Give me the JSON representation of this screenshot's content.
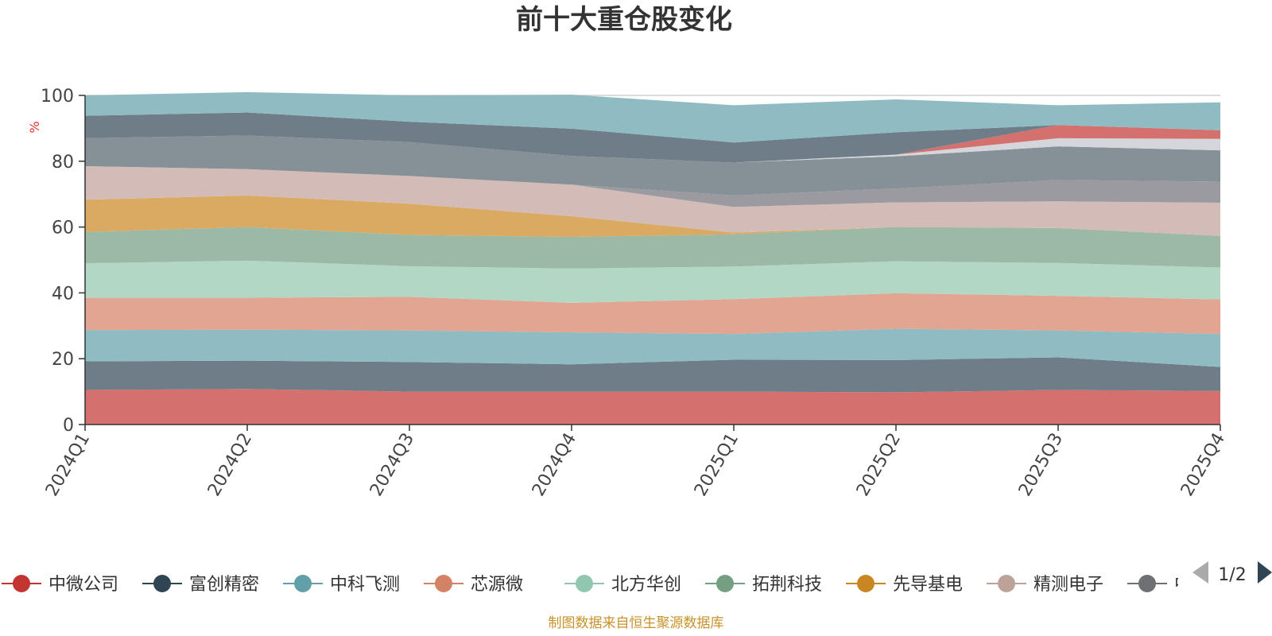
{
  "chart_data": {
    "type": "area",
    "stacked": true,
    "title": "前十大重仓股变化",
    "unit_label": "%",
    "x": [
      "2024Q1",
      "2024Q2",
      "2024Q3",
      "2024Q4",
      "2025Q1",
      "2025Q2",
      "2025Q3",
      "2025Q4"
    ],
    "ylim": [
      0,
      100
    ],
    "yticks": [
      0,
      20,
      40,
      60,
      80,
      100
    ],
    "grid": true,
    "series": [
      {
        "name": "中微公司",
        "color": "#d4716f",
        "values": [
          10.5,
          10.8,
          10.0,
          10.0,
          10.0,
          9.8,
          10.5,
          10.2
        ]
      },
      {
        "name": "富创精密",
        "color": "#6f7d88",
        "values": [
          8.7,
          8.6,
          9.0,
          8.3,
          9.7,
          9.8,
          9.9,
          7.3
        ]
      },
      {
        "name": "中科飞测",
        "color": "#8fbcc3",
        "values": [
          9.5,
          9.4,
          9.6,
          9.7,
          7.8,
          9.5,
          8.2,
          10.0
        ]
      },
      {
        "name": "芯源微",
        "color": "#e2a591",
        "values": [
          9.8,
          9.7,
          10.2,
          9.0,
          10.6,
          10.8,
          10.5,
          10.5
        ]
      },
      {
        "name": "北方华创",
        "color": "#b2d8c5",
        "values": [
          10.5,
          11.3,
          9.3,
          10.4,
          9.9,
          9.7,
          10.0,
          9.7
        ]
      },
      {
        "name": "拓荆科技",
        "color": "#9cb9a5",
        "values": [
          9.5,
          10.2,
          9.5,
          9.6,
          9.8,
          10.4,
          10.6,
          9.6
        ]
      },
      {
        "name": "先导基电",
        "color": "#daaa62",
        "values": [
          9.8,
          9.6,
          9.5,
          6.3,
          0.5,
          0,
          0,
          0
        ]
      },
      {
        "name": "精测电子",
        "color": "#d3bcb7",
        "values": [
          10.2,
          8.0,
          8.4,
          9.6,
          7.8,
          7.5,
          8.1,
          10.1
        ]
      },
      {
        "name": "中"
      },
      {
        "color": "#9a9aa0",
        "values": [
          0,
          0,
          0,
          0,
          3.5,
          4.2,
          6.5,
          6.4
        ]
      },
      {
        "color": "#869197",
        "values": [
          8.5,
          10.2,
          10.3,
          8.7,
          10.0,
          9.8,
          10.2,
          9.5
        ]
      },
      {
        "color": "#d4d6db",
        "values": [
          0,
          0,
          0,
          0,
          0,
          0.5,
          2.5,
          3.5
        ]
      },
      {
        "color": "#d4716f",
        "values": [
          0,
          0,
          0,
          0,
          0,
          0,
          4.0,
          2.6
        ]
      },
      {
        "color": "#6f7d88",
        "values": [
          6.8,
          7.0,
          6.2,
          8.3,
          6.1,
          6.8,
          0,
          0
        ]
      },
      {
        "color": "#8fbcc3",
        "values": [
          6.2,
          6.2,
          8.0,
          10.3,
          11.3,
          10.0,
          6.0,
          8.5
        ]
      }
    ],
    "legend_position": "bottom"
  },
  "legend": {
    "items": [
      {
        "label": "中微公司",
        "color": "#c23531"
      },
      {
        "label": "富创精密",
        "color": "#2f4554"
      },
      {
        "label": "中科飞测",
        "color": "#61a0a8"
      },
      {
        "label": "芯源微",
        "color": "#d48265"
      },
      {
        "label": "北方华创",
        "color": "#91c7ae"
      },
      {
        "label": "拓荆科技",
        "color": "#749f83"
      },
      {
        "label": "先导基电",
        "color": "#ca8622"
      },
      {
        "label": "精测电子",
        "color": "#bda29a"
      },
      {
        "label": "中",
        "color": "#6e7074"
      }
    ],
    "pager": "1/2",
    "prev_icon": "triangle-left-icon",
    "next_icon": "triangle-right-icon"
  },
  "footer": {
    "source": "制图数据来自恒生聚源数据库"
  }
}
